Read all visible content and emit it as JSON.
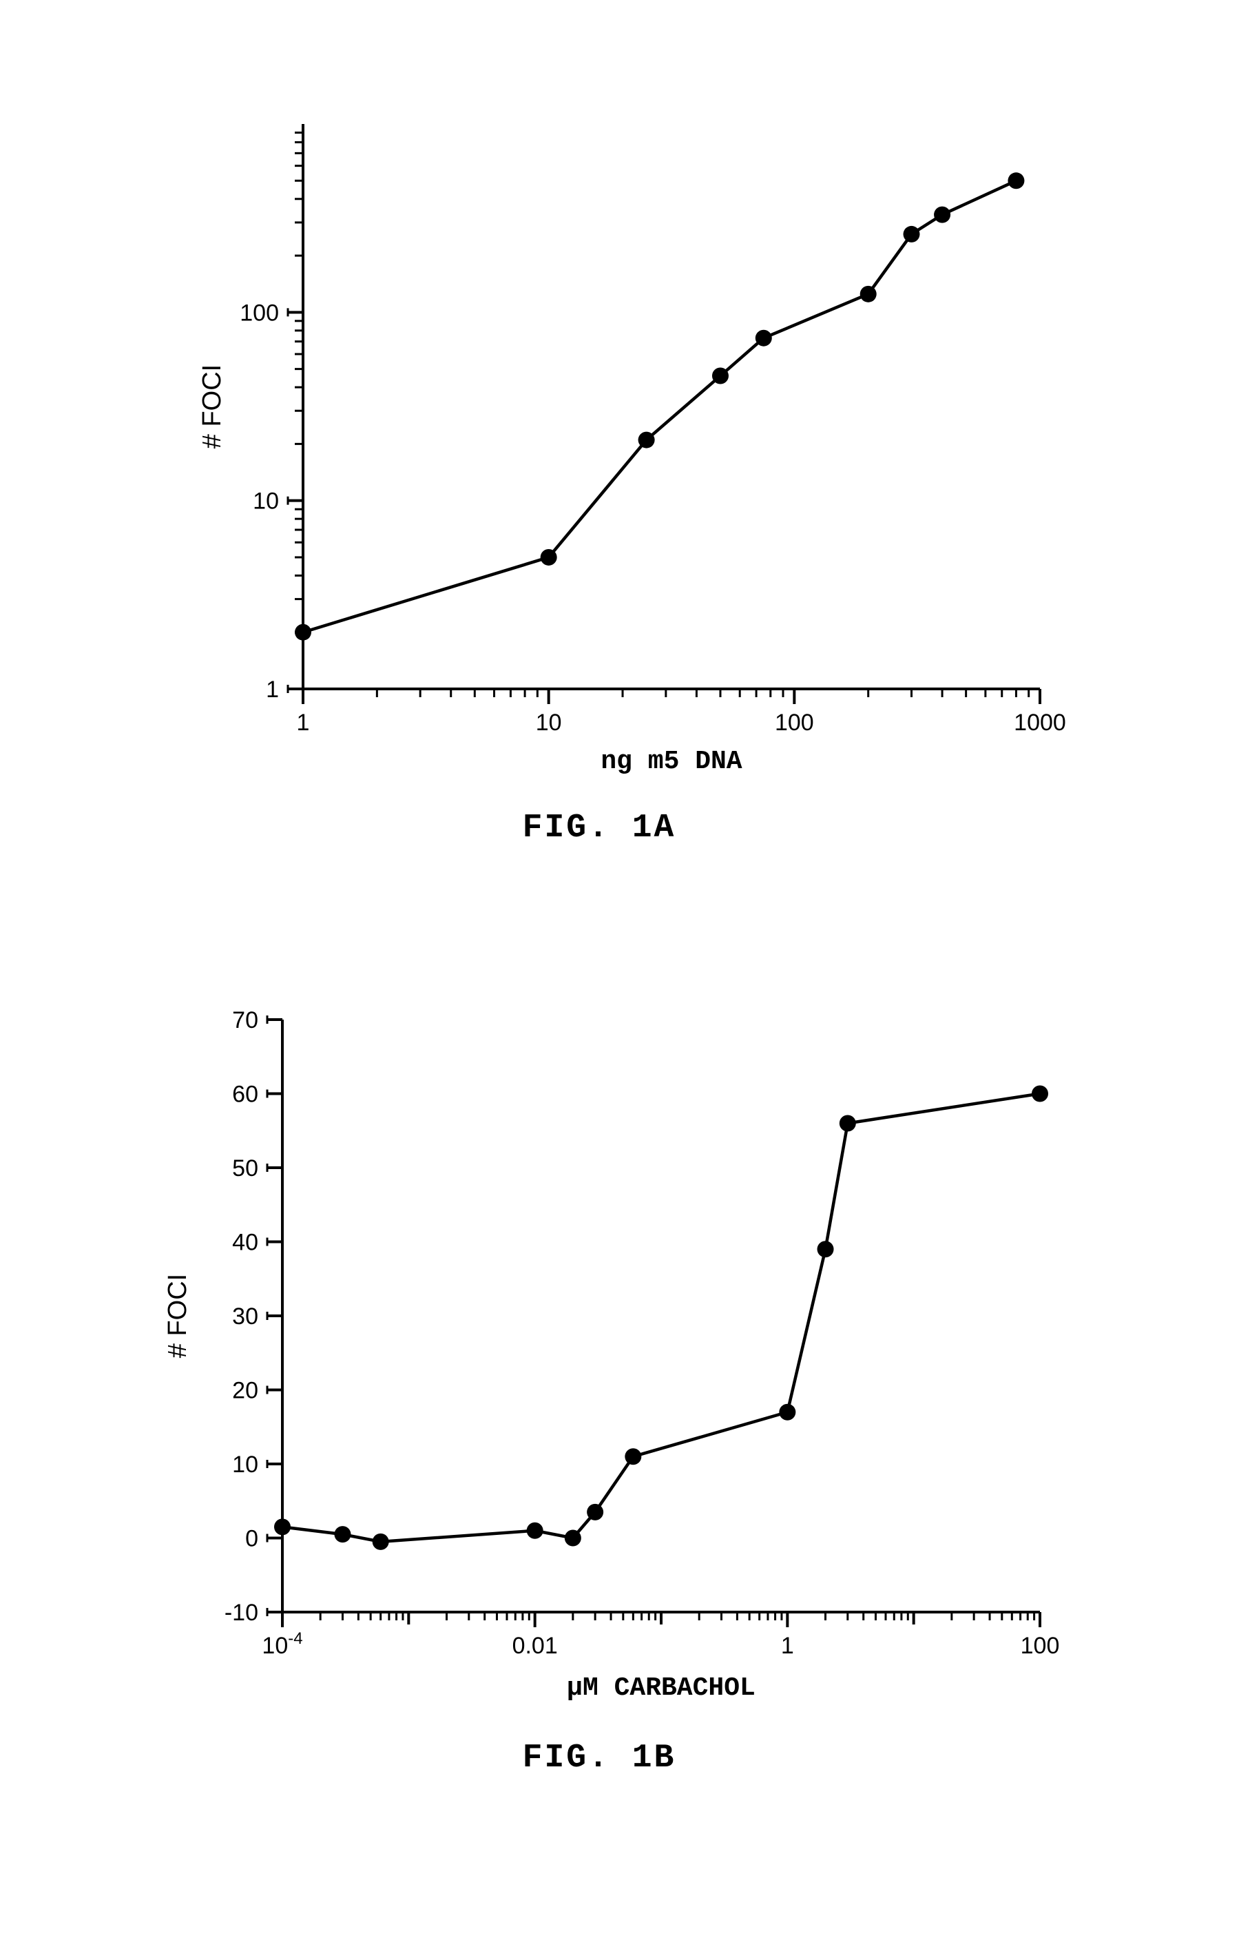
{
  "chartA": {
    "type": "line",
    "title": "FIG. 1A",
    "title_fontsize": 48,
    "xlabel": "ng m5 DNA",
    "ylabel": "# FOCI",
    "label_fontsize": 38,
    "tick_fontsize": 34,
    "x_scale": "log",
    "y_scale": "log",
    "xlim": [
      1,
      1000
    ],
    "ylim": [
      1,
      1000
    ],
    "x_major_ticks": [
      1,
      10,
      100,
      1000
    ],
    "y_major_ticks": [
      1,
      10,
      100
    ],
    "x_labels": [
      "1",
      "10",
      "100",
      "1000"
    ],
    "y_labels": [
      "1",
      "10",
      "100"
    ],
    "data_x": [
      1,
      10,
      25,
      50,
      75,
      200,
      300,
      400,
      800
    ],
    "data_y": [
      2,
      5,
      21,
      46,
      73,
      125,
      260,
      330,
      500
    ],
    "line_color": "#000000",
    "marker_color": "#000000",
    "marker_size": 12,
    "line_width": 4.5,
    "axis_line_width": 4,
    "background_color": "#ffffff"
  },
  "chartB": {
    "type": "line",
    "title": "FIG. 1B",
    "title_fontsize": 48,
    "xlabel": "µM CARBACHOL",
    "ylabel": "# FOCI",
    "label_fontsize": 38,
    "tick_fontsize": 34,
    "x_scale": "log",
    "y_scale": "linear",
    "xlim": [
      0.0001,
      100
    ],
    "ylim": [
      -10,
      70
    ],
    "x_major_ticks": [
      0.0001,
      0.01,
      1,
      100
    ],
    "y_major_ticks": [
      -10,
      0,
      10,
      20,
      30,
      40,
      50,
      60,
      70
    ],
    "x_labels": [
      "10⁻⁴",
      "0.01",
      "1",
      "100"
    ],
    "y_labels": [
      "-10",
      "0",
      "10",
      "20",
      "30",
      "40",
      "50",
      "60",
      "70"
    ],
    "data_x": [
      0.0001,
      0.0003,
      0.0006,
      0.01,
      0.02,
      0.03,
      0.06,
      1,
      2,
      3,
      100
    ],
    "data_y": [
      1.5,
      0.5,
      -0.5,
      1,
      0,
      3.5,
      11,
      17,
      39,
      56,
      60
    ],
    "line_color": "#000000",
    "marker_color": "#000000",
    "marker_size": 12,
    "line_width": 4.5,
    "axis_line_width": 4,
    "background_color": "#ffffff"
  }
}
